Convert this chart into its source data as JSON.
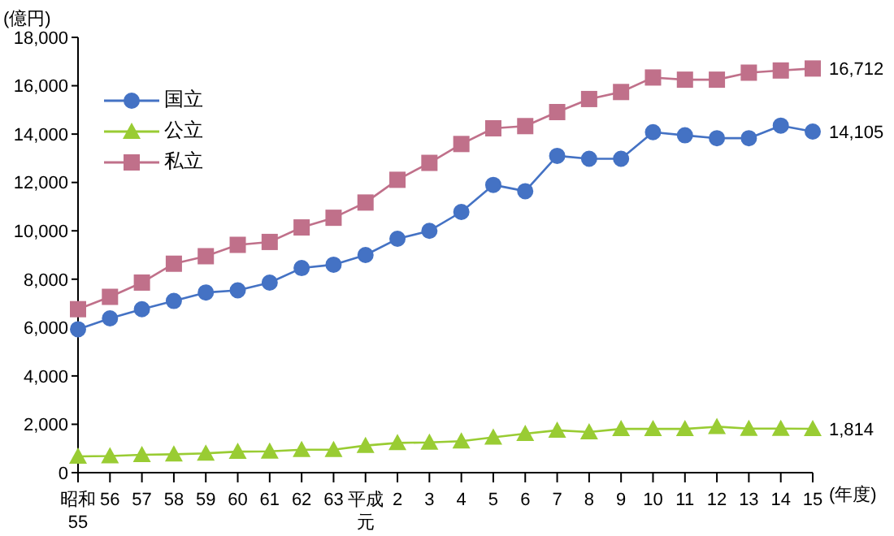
{
  "chart_data": {
    "type": "line",
    "ylabel": "(億円)",
    "xlabel": "(年度)",
    "categories": [
      "昭和55",
      "56",
      "57",
      "58",
      "59",
      "60",
      "61",
      "62",
      "63",
      "平成元",
      "2",
      "3",
      "4",
      "5",
      "6",
      "7",
      "8",
      "9",
      "10",
      "11",
      "12",
      "13",
      "14",
      "15"
    ],
    "series": [
      {
        "name": "国立",
        "color": "#4472c4",
        "marker": "circle",
        "values": [
          5930,
          6380,
          6760,
          7100,
          7450,
          7540,
          7860,
          8460,
          8600,
          9000,
          9670,
          10000,
          10780,
          11900,
          11640,
          13100,
          12980,
          12980,
          14080,
          13950,
          13830,
          13830,
          14350,
          14105
        ],
        "value_labels": [
          null,
          null,
          null,
          null,
          null,
          null,
          null,
          null,
          null,
          null,
          null,
          null,
          null,
          null,
          null,
          null,
          null,
          null,
          null,
          null,
          null,
          null,
          null,
          "14,105"
        ]
      },
      {
        "name": "公立",
        "color": "#99cc33",
        "marker": "triangle",
        "values": [
          670,
          690,
          740,
          760,
          800,
          870,
          880,
          950,
          950,
          1120,
          1230,
          1250,
          1300,
          1460,
          1610,
          1750,
          1680,
          1810,
          1810,
          1810,
          1900,
          1820,
          1820,
          1814
        ],
        "value_labels": [
          null,
          null,
          null,
          null,
          null,
          null,
          null,
          null,
          null,
          null,
          null,
          null,
          null,
          null,
          null,
          null,
          null,
          null,
          null,
          null,
          null,
          null,
          null,
          "1,814"
        ]
      },
      {
        "name": "私立",
        "color": "#c0708a",
        "marker": "square",
        "values": [
          6760,
          7270,
          7860,
          8640,
          8950,
          9420,
          9540,
          10140,
          10540,
          11170,
          12110,
          12810,
          13590,
          14240,
          14330,
          14910,
          15450,
          15740,
          16340,
          16250,
          16250,
          16540,
          16630,
          16712
        ],
        "value_labels": [
          null,
          null,
          null,
          null,
          null,
          null,
          null,
          null,
          null,
          null,
          null,
          null,
          null,
          null,
          null,
          null,
          null,
          null,
          null,
          null,
          null,
          null,
          null,
          "16,712"
        ]
      }
    ],
    "ylim": [
      0,
      18000
    ],
    "yticks": [
      0,
      {
        "value": 2000,
        "label": "2,000"
      },
      {
        "value": 4000,
        "label": "4,000"
      },
      {
        "value": 6000,
        "label": "6,000"
      },
      {
        "value": 8000,
        "label": "8,000"
      },
      {
        "value": 10000,
        "label": "10,000"
      },
      {
        "value": 12000,
        "label": "12,000"
      },
      {
        "value": 14000,
        "label": "14,000"
      },
      {
        "value": 16000,
        "label": "16,000"
      },
      {
        "value": 18000,
        "label": "18,000"
      }
    ],
    "grid": false,
    "legend": "top left"
  }
}
